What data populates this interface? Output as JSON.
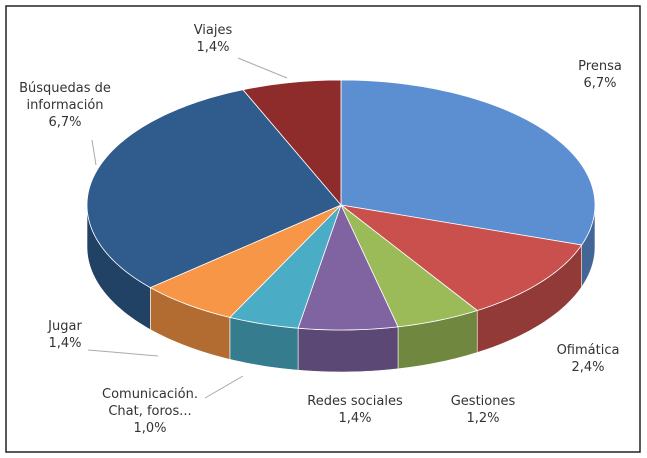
{
  "chart_data": {
    "type": "pie3d",
    "categories": [
      "Prensa",
      "Ofimática",
      "Gestiones",
      "Redes sociales",
      "Comunicación. Chat, foros...",
      "Jugar",
      "Búsquedas de información",
      "Viajes"
    ],
    "values": [
      6.7,
      2.4,
      1.2,
      1.4,
      1.0,
      1.4,
      6.7,
      1.4
    ],
    "value_labels": [
      "6,7%",
      "2,4%",
      "1,2%",
      "1,4%",
      "1,0%",
      "1,4%",
      "6,7%",
      "1,4%"
    ],
    "colors": [
      "#5b8fd2",
      "#c9504d",
      "#9bbb59",
      "#8064a2",
      "#4bacc6",
      "#f79646",
      "#2f5c8c",
      "#8e2b2b"
    ]
  }
}
